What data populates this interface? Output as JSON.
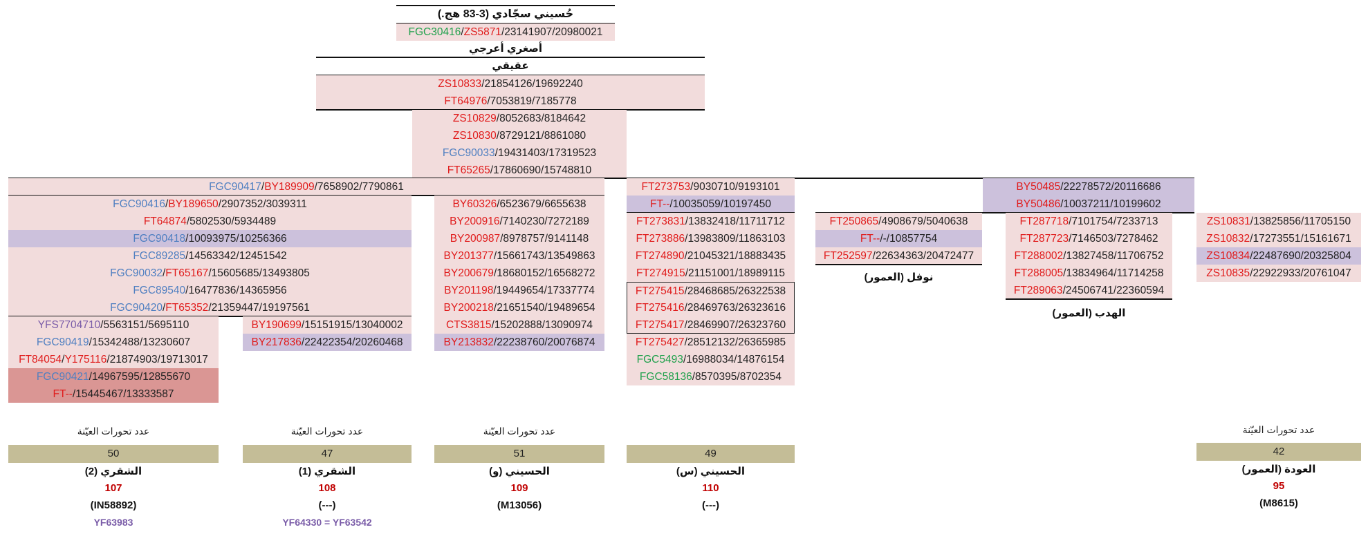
{
  "top": {
    "title": "حُسيني سجّادي (3-83 هج.)",
    "root_snp": [
      [
        "g",
        "FGC30416"
      ],
      [
        "k",
        "/"
      ],
      [
        "r",
        "ZS5871"
      ],
      [
        "k",
        "/23141907/20980021"
      ]
    ],
    "name1": "أصغري أعرجي",
    "name2": "عقيقي",
    "rows": [
      [
        [
          "r",
          "ZS10833"
        ],
        [
          "k",
          "/21854126/19692240"
        ]
      ],
      [
        [
          "r",
          "FT64976"
        ],
        [
          "k",
          "/7053819/7185778"
        ]
      ],
      [
        [
          "r",
          "ZS10829"
        ],
        [
          "k",
          "/8052683/8184642"
        ]
      ],
      [
        [
          "r",
          "ZS10830"
        ],
        [
          "k",
          "/8729121/8861080"
        ]
      ],
      [
        [
          "b",
          "FGC90033"
        ],
        [
          "k",
          "/19431403/17319523"
        ]
      ],
      [
        [
          "r",
          "FT65265"
        ],
        [
          "k",
          "/17860690/15748810"
        ]
      ]
    ]
  },
  "shaqri": {
    "header": [
      [
        "b",
        "FGC90417"
      ],
      [
        "k",
        "/"
      ],
      [
        "r",
        "BY189909"
      ],
      [
        "k",
        "/7658902/7790861"
      ]
    ],
    "rows": [
      [
        [
          "b",
          "FGC90416"
        ],
        [
          "k",
          "/"
        ],
        [
          "r",
          "BY189650"
        ],
        [
          "k",
          "/2907352/3039311"
        ]
      ],
      [
        [
          "r",
          "FT64874"
        ],
        [
          "k",
          "/5802530/5934489"
        ]
      ],
      [
        [
          "b",
          "FGC90418"
        ],
        [
          "k",
          "/10093975/10256366"
        ]
      ],
      [
        [
          "b",
          "FGC89285"
        ],
        [
          "k",
          "/14563342/12451542"
        ]
      ],
      [
        [
          "b",
          "FGC90032"
        ],
        [
          "k",
          "/"
        ],
        [
          "r",
          "FT65167"
        ],
        [
          "k",
          "/15605685/13493805"
        ]
      ],
      [
        [
          "b",
          "FGC89540"
        ],
        [
          "k",
          "/16477836/14365956"
        ]
      ],
      [
        [
          "b",
          "FGC90420"
        ],
        [
          "k",
          "/"
        ],
        [
          "r",
          "FT65352"
        ],
        [
          "k",
          "/21359447/19197561"
        ]
      ]
    ],
    "sub2": [
      [
        [
          "p",
          "YFS7704710"
        ],
        [
          "k",
          "/5563151/5695110"
        ]
      ],
      [
        [
          "b",
          "FGC90419"
        ],
        [
          "k",
          "/15342488/13230607"
        ]
      ],
      [
        [
          "r",
          "FT84054"
        ],
        [
          "k",
          "/"
        ],
        [
          "r",
          "Y175116"
        ],
        [
          "k",
          "/21874903/19713017"
        ]
      ],
      [
        [
          "b",
          "FGC90421"
        ],
        [
          "k",
          "/14967595/12855670"
        ]
      ],
      [
        [
          "r",
          "FT--"
        ],
        [
          "k",
          "/15445467/13333587"
        ]
      ]
    ],
    "sub1": [
      [
        [
          "r",
          "BY190699"
        ],
        [
          "k",
          "/15151915/13040002"
        ]
      ],
      [
        [
          "r",
          "BY217836"
        ],
        [
          "k",
          "/22422354/20260468"
        ]
      ]
    ]
  },
  "husaini_w": {
    "rows": [
      [
        [
          "r",
          "BY60326"
        ],
        [
          "k",
          "/6523679/6655638"
        ]
      ],
      [
        [
          "r",
          "BY200916"
        ],
        [
          "k",
          "/7140230/7272189"
        ]
      ],
      [
        [
          "r",
          "BY200987"
        ],
        [
          "k",
          "/8978757/9141148"
        ]
      ],
      [
        [
          "r",
          "BY201377"
        ],
        [
          "k",
          "/15661743/13549863"
        ]
      ],
      [
        [
          "r",
          "BY200679"
        ],
        [
          "k",
          "/18680152/16568272"
        ]
      ],
      [
        [
          "r",
          "BY201198"
        ],
        [
          "k",
          "/19449654/17337774"
        ]
      ],
      [
        [
          "r",
          "BY200218"
        ],
        [
          "k",
          "/21651540/19489654"
        ]
      ],
      [
        [
          "r",
          "CTS3815"
        ],
        [
          "k",
          "/15202888/13090974"
        ]
      ],
      [
        [
          "r",
          "BY213832"
        ],
        [
          "k",
          "/22238760/20076874"
        ]
      ]
    ]
  },
  "husaini_s": {
    "rows": [
      [
        [
          "r",
          "FT273753"
        ],
        [
          "k",
          "/9030710/9193101"
        ]
      ],
      [
        [
          "r",
          "FT--"
        ],
        [
          "k",
          "/10035059/10197450"
        ]
      ],
      [
        [
          "r",
          "FT273831"
        ],
        [
          "k",
          "/13832418/11711712"
        ]
      ],
      [
        [
          "r",
          "FT273886"
        ],
        [
          "k",
          "/13983809/11863103"
        ]
      ],
      [
        [
          "r",
          "FT274890"
        ],
        [
          "k",
          "/21045321/18883435"
        ]
      ],
      [
        [
          "r",
          "FT274915"
        ],
        [
          "k",
          "/21151001/18989115"
        ]
      ],
      [
        [
          "r",
          "FT275415"
        ],
        [
          "k",
          "/28468685/26322538"
        ]
      ],
      [
        [
          "r",
          "FT275416"
        ],
        [
          "k",
          "/28469763/26323616"
        ]
      ],
      [
        [
          "r",
          "FT275417"
        ],
        [
          "k",
          "/28469907/26323760"
        ]
      ],
      [
        [
          "r",
          "FT275427"
        ],
        [
          "k",
          "/28512132/26365985"
        ]
      ],
      [
        [
          "g",
          "FGC5493"
        ],
        [
          "k",
          "/16988034/14876154"
        ]
      ],
      [
        [
          "g",
          "FGC58136"
        ],
        [
          "k",
          "/8570395/8702354"
        ]
      ]
    ]
  },
  "amour": {
    "header": [
      [
        [
          "r",
          "BY50485"
        ],
        [
          "k",
          "/22278572/20116686"
        ]
      ],
      [
        [
          "r",
          "BY50486"
        ],
        [
          "k",
          "/10037211/10199602"
        ]
      ]
    ],
    "nawfal_rows": [
      [
        [
          "r",
          "FT250865"
        ],
        [
          "k",
          "/4908679/5040638"
        ]
      ],
      [
        [
          "r",
          "FT--"
        ],
        [
          "k",
          "/-/10857754"
        ]
      ],
      [
        [
          "r",
          "FT252597"
        ],
        [
          "k",
          "/22634363/20472477"
        ]
      ]
    ],
    "nawfal_label": "نوفل (العمور)",
    "hadab_rows": [
      [
        [
          "r",
          "FT287718"
        ],
        [
          "k",
          "/7101754/7233713"
        ]
      ],
      [
        [
          "r",
          "FT287723"
        ],
        [
          "k",
          "/7146503/7278462"
        ]
      ],
      [
        [
          "r",
          "FT288002"
        ],
        [
          "k",
          "/13827458/11706752"
        ]
      ],
      [
        [
          "r",
          "FT288005"
        ],
        [
          "k",
          "/13834964/11714258"
        ]
      ],
      [
        [
          "r",
          "FT289063"
        ],
        [
          "k",
          "/24506741/22360594"
        ]
      ]
    ],
    "hadab_label": "الهدب (العمور)",
    "awda_rows": [
      [
        [
          "r",
          "ZS10831"
        ],
        [
          "k",
          "/13825856/11705150"
        ]
      ],
      [
        [
          "r",
          "ZS10832"
        ],
        [
          "k",
          "/17273551/15161671"
        ]
      ],
      [
        [
          "r",
          "ZS10834"
        ],
        [
          "k",
          "/22487690/20325804"
        ]
      ],
      [
        [
          "r",
          "ZS10835"
        ],
        [
          "k",
          "/22922933/20761047"
        ]
      ]
    ]
  },
  "bottom": [
    {
      "caption": "عدد تحورات العيّنة",
      "count": "50",
      "name": "الشقري (2)",
      "num": "107",
      "hap": "(IN58892)",
      "yf": "YF63983"
    },
    {
      "caption": "عدد تحورات العيّنة",
      "count": "47",
      "name": "الشقري (1)",
      "num": "108",
      "hap": "(---)",
      "yf": "YF64330 = YF63542"
    },
    {
      "caption": "عدد تحورات العيّنة",
      "count": "51",
      "name": "الحسيني (و)",
      "num": "109",
      "hap": "(M13056)",
      "yf": ""
    },
    {
      "caption": "",
      "count": "49",
      "name": "الحسيني (س)",
      "num": "110",
      "hap": "(---)",
      "yf": ""
    },
    {
      "caption": "عدد تحورات العيّنة",
      "count": "42",
      "name": "العودة (العمور)",
      "num": "95",
      "hap": "(M8615)",
      "yf": ""
    }
  ],
  "colors": {
    "green": "#1fa04b",
    "red": "#e01b1b",
    "blue": "#4f7fc1",
    "purple": "#7a5ca8",
    "pink": "#f2dcdc",
    "lavender": "#ccc1dc",
    "khaki": "#c4bd97"
  }
}
